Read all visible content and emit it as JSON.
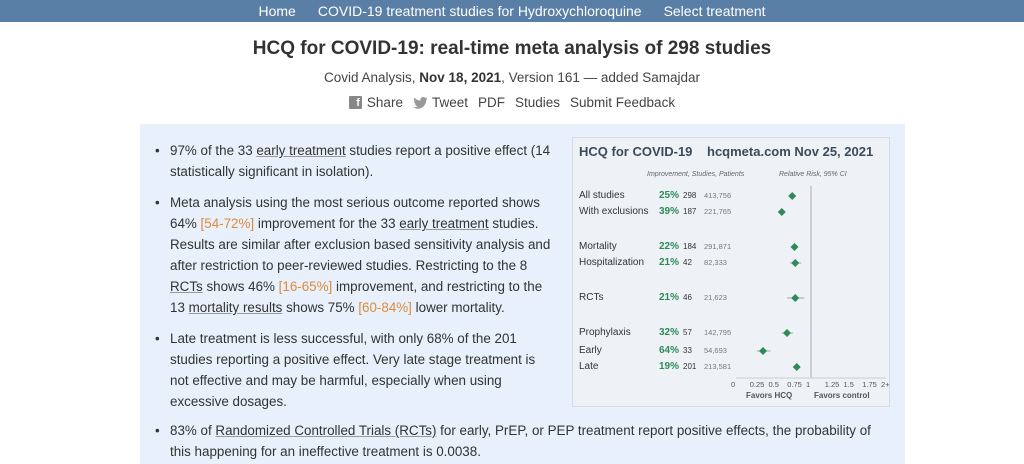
{
  "nav": {
    "items": [
      "Home",
      "COVID-19 treatment studies for Hydroxychloroquine",
      "Select treatment"
    ]
  },
  "header": {
    "title": "HCQ for COVID-19: real-time meta analysis of 298 studies",
    "source": "Covid Analysis, ",
    "date": "Nov 18, 2021",
    "version": ", Version 161 — added Samajdar"
  },
  "actions": {
    "share": "Share",
    "tweet": "Tweet",
    "pdf": "PDF",
    "studies": "Studies",
    "feedback": "Submit Feedback"
  },
  "bullets": {
    "b1_a": "97% of the 33 ",
    "b1_link": "early treatment",
    "b1_b": " studies report a positive effect (14 statistically significant in isolation).",
    "b2_a": "Meta analysis using the most serious outcome reported shows 64% ",
    "b2_ci1": "[54-72%]",
    "b2_b": " improvement for the 33 ",
    "b2_link1": "early treatment",
    "b2_c": " studies. Results are similar after exclusion based sensitivity analysis and after restriction to peer-reviewed studies. Restricting to the 8 ",
    "b2_link2": "RCTs",
    "b2_d": " shows 46% ",
    "b2_ci2": "[16-65%]",
    "b2_e": " improvement, and restricting to the 13 ",
    "b2_link3": "mortality results",
    "b2_f": " shows 75% ",
    "b2_ci3": "[60-84%]",
    "b2_g": " lower mortality.",
    "b3": "Late treatment is less successful, with only 68% of the 201 studies reporting a positive effect. Very late stage treatment is not effective and may be harmful, especially when using excessive dosages.",
    "b4_a": "83% of ",
    "b4_link": "Randomized Controlled Trials (RCTs)",
    "b4_b": " for early, PrEP, or PEP treatment report positive effects, the probability of this happening for an ineffective treatment is 0.0038."
  },
  "card": {
    "title": "HCQ for COVID-19",
    "site": "hcqmeta.com Nov 25, 2021",
    "header_left": "Improvement, Studies, Patients",
    "header_right": "Relative Risk, 95% CI",
    "ticks": [
      "0",
      "0.25",
      "0.5",
      "0.75",
      "1",
      "1.25",
      "1.5",
      "1.75",
      "2+"
    ],
    "favors_left": "Favors HCQ",
    "favors_right": "Favors control",
    "marker_color": "#2e8b57",
    "rows": [
      {
        "label": "All studies",
        "pct": "25%",
        "studies": "298",
        "patients": "413,756",
        "rr": 0.75,
        "lo": 0.71,
        "hi": 0.79
      },
      {
        "label": "With exclusions",
        "pct": "39%",
        "studies": "187",
        "patients": "221,765",
        "rr": 0.61,
        "lo": 0.57,
        "hi": 0.66
      },
      {
        "label": "Mortality",
        "pct": "22%",
        "studies": "184",
        "patients": "291,871",
        "rr": 0.78,
        "lo": 0.73,
        "hi": 0.83
      },
      {
        "label": "Hospitalization",
        "pct": "21%",
        "studies": "42",
        "patients": "82,333",
        "rr": 0.79,
        "lo": 0.72,
        "hi": 0.87
      },
      {
        "label": "RCTs",
        "pct": "21%",
        "studies": "46",
        "patients": "21,623",
        "rr": 0.79,
        "lo": 0.68,
        "hi": 0.91
      },
      {
        "label": "Prophylaxis",
        "pct": "32%",
        "studies": "57",
        "patients": "142,795",
        "rr": 0.68,
        "lo": 0.61,
        "hi": 0.76
      },
      {
        "label": "Early",
        "pct": "64%",
        "studies": "33",
        "patients": "54,693",
        "rr": 0.36,
        "lo": 0.28,
        "hi": 0.46
      },
      {
        "label": "Late",
        "pct": "19%",
        "studies": "201",
        "patients": "213,581",
        "rr": 0.81,
        "lo": 0.77,
        "hi": 0.85
      }
    ]
  }
}
